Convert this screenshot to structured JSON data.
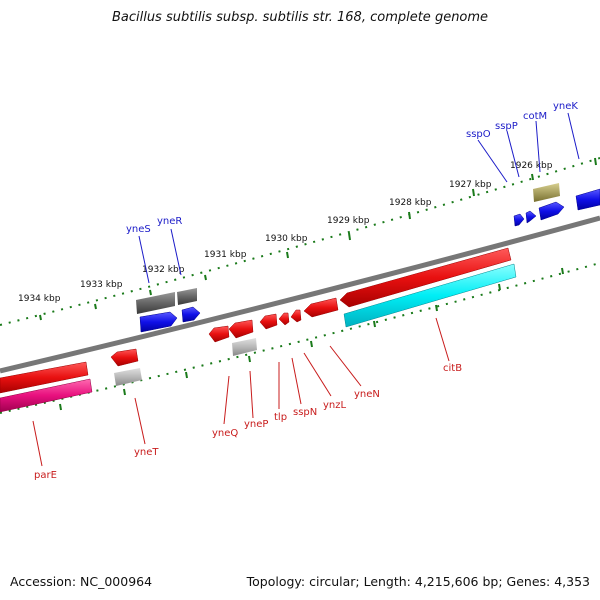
{
  "header": {
    "title": "Bacillus subtilis subsp. subtilis str. 168, complete genome"
  },
  "footer": {
    "accession": "Accession: NC_000964",
    "summary": "Topology: circular; Length: 4,215,606 bp; Genes: 4,353"
  },
  "scale": {
    "labels": [
      "1926 kbp",
      "1927 kbp",
      "1928 kbp",
      "1929 kbp",
      "1930 kbp",
      "1931 kbp",
      "1932 kbp",
      "1933 kbp",
      "1934 kbp"
    ]
  },
  "genes": {
    "top": [
      "yneK",
      "cotM",
      "sspP",
      "sspO",
      "yneR",
      "yneS"
    ],
    "bottom": [
      "citB",
      "yneN",
      "ynzL",
      "sspN",
      "tlp",
      "yneP",
      "yneQ",
      "yneT",
      "parE"
    ]
  },
  "colors": {
    "forward": "#1010e0",
    "reverse": "#e01010",
    "cyan": "#00e8f0",
    "pink": "#e0107a",
    "gray": "#707070",
    "olive": "#a8a060",
    "tick": "#1a7a1a",
    "label_forward": "#1c1cc8",
    "label_reverse": "#c81c1c"
  }
}
